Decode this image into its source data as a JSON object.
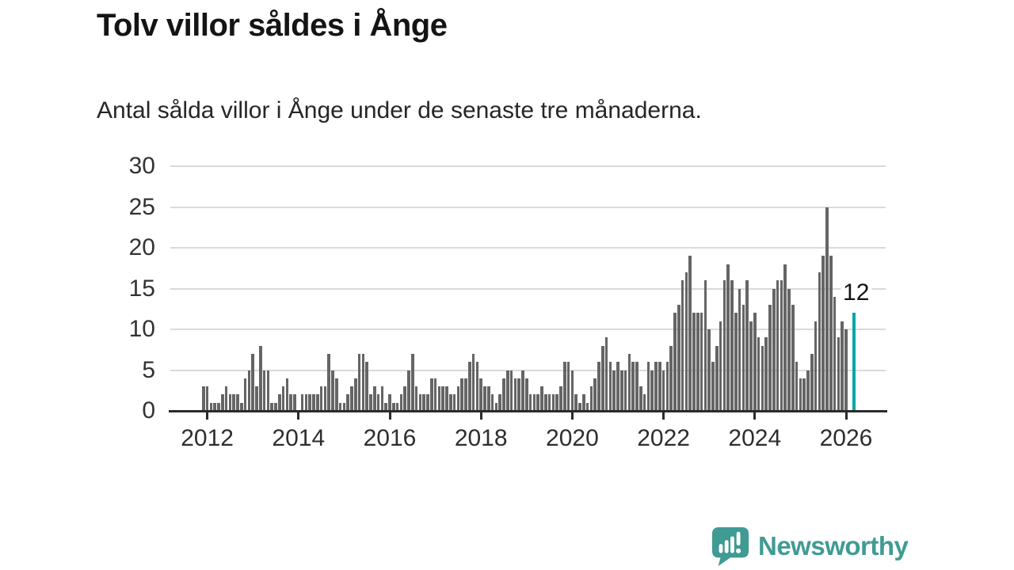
{
  "title": "Tolv villor såldes i Ånge",
  "subtitle": "Antal sålda villor i Ånge under de senaste tre månaderna.",
  "chart_data": {
    "type": "bar",
    "title": "Tolv villor såldes i Ånge",
    "subtitle": "Antal sålda villor i Ånge under de senaste tre månaderna.",
    "ylabel": "",
    "xlabel": "",
    "ylim": [
      0,
      30
    ],
    "y_ticks": [
      0,
      5,
      10,
      15,
      20,
      25,
      30
    ],
    "x_tick_years": [
      2012,
      2014,
      2016,
      2018,
      2020,
      2022,
      2024,
      2026
    ],
    "grid": "horizontal",
    "start_month": "2011-12",
    "frequency": "monthly",
    "values": [
      3,
      3,
      1,
      1,
      1,
      2,
      3,
      2,
      2,
      2,
      1,
      4,
      5,
      7,
      3,
      8,
      5,
      5,
      1,
      1,
      2,
      3,
      4,
      2,
      2,
      0,
      2,
      2,
      2,
      2,
      2,
      3,
      3,
      7,
      5,
      4,
      1,
      1,
      2,
      3,
      4,
      7,
      7,
      6,
      2,
      3,
      2,
      3,
      1,
      2,
      1,
      1,
      2,
      3,
      5,
      7,
      3,
      2,
      2,
      2,
      4,
      4,
      3,
      3,
      3,
      2,
      2,
      3,
      4,
      4,
      6,
      7,
      6,
      4,
      3,
      3,
      2,
      1,
      2,
      4,
      5,
      5,
      4,
      4,
      5,
      4,
      2,
      2,
      2,
      3,
      2,
      2,
      2,
      2,
      3,
      6,
      6,
      5,
      2,
      1,
      2,
      1,
      3,
      4,
      6,
      8,
      9,
      6,
      5,
      6,
      5,
      5,
      7,
      6,
      6,
      3,
      2,
      6,
      5,
      6,
      6,
      5,
      6,
      8,
      12,
      13,
      16,
      17,
      19,
      12,
      12,
      12,
      16,
      10,
      6,
      8,
      11,
      16,
      18,
      16,
      12,
      15,
      13,
      16,
      11,
      12,
      9,
      8,
      9,
      13,
      15,
      16,
      16,
      18,
      15,
      13,
      6,
      4,
      4,
      5,
      7,
      11,
      17,
      19,
      25,
      19,
      14,
      9,
      11,
      10
    ],
    "highlight": {
      "value": 12,
      "label": "12",
      "color": "#00a5a5",
      "gap_slots_before": 1
    }
  },
  "colors": {
    "bar": "#656565",
    "accent_teal": "#00a5a5",
    "logo_teal": "#3f9b94",
    "gridline": "#dadada",
    "axis": "#2b2b2b",
    "text": "#141414"
  },
  "logo": {
    "text": "Newsworthy"
  }
}
